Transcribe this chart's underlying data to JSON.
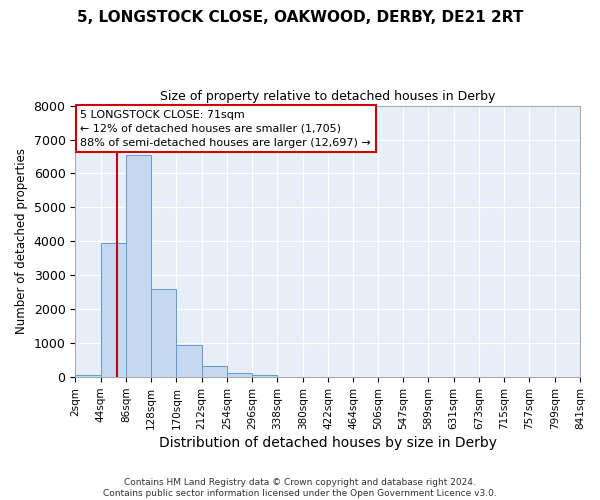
{
  "title": "5, LONGSTOCK CLOSE, OAKWOOD, DERBY, DE21 2RT",
  "subtitle": "Size of property relative to detached houses in Derby",
  "xlabel": "Distribution of detached houses by size in Derby",
  "ylabel": "Number of detached properties",
  "bar_color": "#c5d8f0",
  "bar_edge_color": "#5b9bd5",
  "bg_color": "#e8eef8",
  "grid_color": "#ffffff",
  "fig_bg_color": "#ffffff",
  "annotation_box_color": "#ffffff",
  "annotation_box_edge": "#cc0000",
  "vline_color": "#cc0000",
  "vline_x": 71,
  "bins": [
    2,
    44,
    86,
    128,
    170,
    212,
    254,
    296,
    338,
    380,
    422,
    464,
    506,
    547,
    589,
    631,
    673,
    715,
    757,
    799,
    841
  ],
  "counts": [
    75,
    3950,
    6550,
    2600,
    960,
    320,
    130,
    75,
    0,
    0,
    0,
    0,
    0,
    0,
    0,
    0,
    0,
    0,
    0,
    0
  ],
  "ylim": [
    0,
    8000
  ],
  "yticks": [
    0,
    1000,
    2000,
    3000,
    4000,
    5000,
    6000,
    7000,
    8000
  ],
  "xtick_labels": [
    "2sqm",
    "44sqm",
    "86sqm",
    "128sqm",
    "170sqm",
    "212sqm",
    "254sqm",
    "296sqm",
    "338sqm",
    "380sqm",
    "422sqm",
    "464sqm",
    "506sqm",
    "547sqm",
    "589sqm",
    "631sqm",
    "673sqm",
    "715sqm",
    "757sqm",
    "799sqm",
    "841sqm"
  ],
  "annotation_title": "5 LONGSTOCK CLOSE: 71sqm",
  "annotation_line1": "← 12% of detached houses are smaller (1,705)",
  "annotation_line2": "88% of semi-detached houses are larger (12,697) →",
  "footer_line1": "Contains HM Land Registry data © Crown copyright and database right 2024.",
  "footer_line2": "Contains public sector information licensed under the Open Government Licence v3.0."
}
